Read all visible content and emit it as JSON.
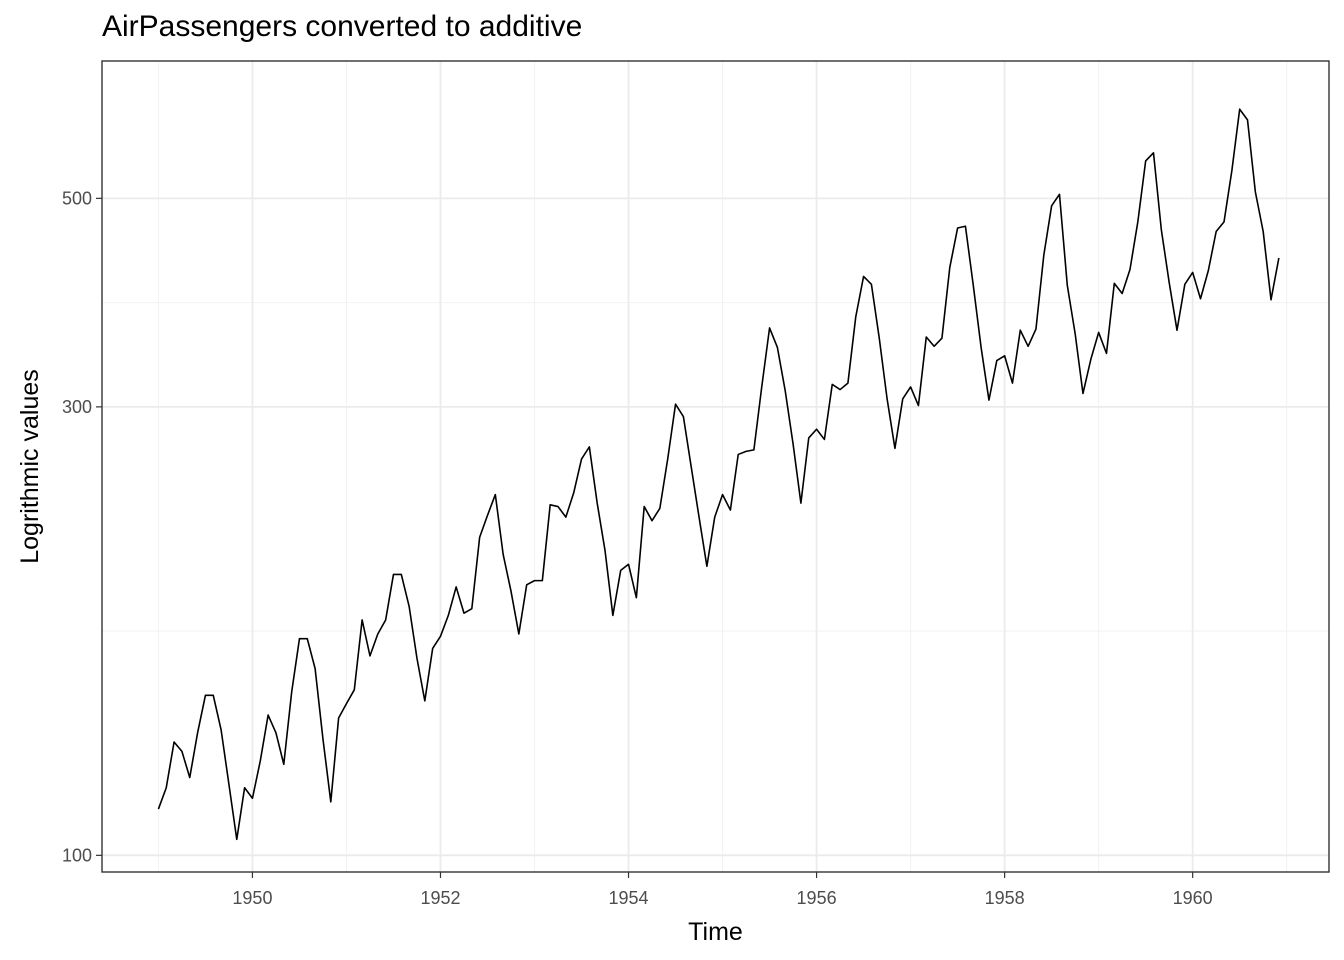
{
  "chart_data": {
    "type": "line",
    "title": "AirPassengers converted to additive",
    "xlabel": "Time",
    "ylabel": "Logrithmic values",
    "y_scale": "log",
    "xlim": [
      1948.4,
      1961.45
    ],
    "ylim": [
      96,
      700
    ],
    "x_ticks": [
      1950,
      1952,
      1954,
      1956,
      1958,
      1960
    ],
    "x_tick_labels": [
      "1950",
      "1952",
      "1954",
      "1956",
      "1958",
      "1960"
    ],
    "y_ticks": [
      100,
      300,
      500
    ],
    "y_tick_labels": [
      "100",
      "300",
      "500"
    ],
    "y_minor_gridlines": [
      173.2,
      387.3
    ],
    "x_minor_gridlines": [
      1949,
      1951,
      1953,
      1955,
      1957,
      1959,
      1961
    ],
    "grid": true,
    "line_color": "#000000",
    "series": [
      {
        "start": 1949.0,
        "frequency": 12,
        "values": [
          112,
          118,
          132,
          129,
          121,
          135,
          148,
          148,
          136,
          119,
          104,
          118,
          115,
          126,
          141,
          135,
          125,
          149,
          170,
          170,
          158,
          133,
          114,
          140,
          145,
          150,
          178,
          163,
          172,
          178,
          199,
          199,
          184,
          162,
          146,
          166,
          171,
          180,
          193,
          181,
          183,
          218,
          230,
          242,
          209,
          191,
          172,
          194,
          196,
          196,
          236,
          235,
          229,
          243,
          264,
          272,
          237,
          211,
          180,
          201,
          204,
          188,
          235,
          227,
          234,
          264,
          302,
          293,
          259,
          229,
          203,
          229,
          242,
          233,
          267,
          269,
          270,
          315,
          364,
          347,
          312,
          274,
          237,
          278,
          284,
          277,
          317,
          313,
          318,
          374,
          413,
          405,
          355,
          306,
          271,
          306,
          315,
          301,
          356,
          348,
          355,
          422,
          465,
          467,
          404,
          347,
          305,
          336,
          340,
          318,
          362,
          348,
          363,
          435,
          491,
          505,
          404,
          359,
          310,
          337,
          360,
          342,
          406,
          396,
          420,
          472,
          548,
          559,
          463,
          407,
          362,
          405,
          417,
          391,
          419,
          461,
          472,
          535,
          622,
          606,
          508,
          461,
          390,
          432
        ]
      }
    ]
  }
}
